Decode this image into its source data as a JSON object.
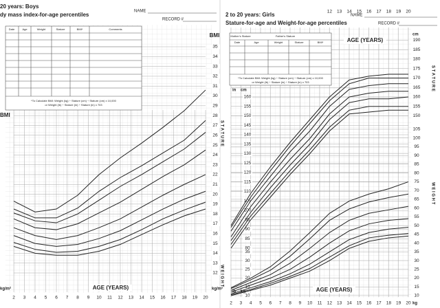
{
  "chart_data": [
    {
      "type": "line",
      "title": "20 years: Boys",
      "subtitle": "dy mass index-for-age percentiles",
      "name_label": "NAME",
      "record_label": "RECORD #",
      "table_headers": [
        "Date",
        "Age",
        "Weight",
        "Stature",
        "BMI*",
        "Comments"
      ],
      "note": [
        "*To Calculate BMI: Weight (kg) ÷ Stature (cm) ÷ Stature (cm) x 10,000",
        "or Weight (lb) ÷ Stature (in) ÷ Stature (in) x 703"
      ],
      "y_label": "BMI",
      "y_unit": "kg/m²",
      "x_label": "AGE (YEARS)",
      "side_labels": [
        "S T A T U R E",
        "W E I G H T"
      ],
      "x": [
        2,
        4,
        6,
        8,
        10,
        12,
        14,
        16,
        18,
        20
      ],
      "xlim": [
        2,
        20
      ],
      "xticks": [
        2,
        3,
        4,
        5,
        6,
        7,
        8,
        9,
        10,
        11,
        12,
        13,
        14,
        15,
        16,
        17,
        18,
        19,
        20
      ],
      "ylim": [
        12,
        35
      ],
      "yticks": [
        12,
        13,
        14,
        15,
        16,
        17,
        18,
        19,
        20,
        21,
        22,
        23,
        24,
        25,
        26,
        27,
        28,
        29,
        30,
        31,
        32,
        33,
        34,
        35
      ],
      "grid": true,
      "series": [
        {
          "color": "#222222",
          "values": [
            14.7,
            14.0,
            13.8,
            13.8,
            14.2,
            14.9,
            15.9,
            16.9,
            17.8,
            18.5
          ]
        },
        {
          "color": "#222222",
          "values": [
            15.1,
            14.4,
            14.1,
            14.2,
            14.7,
            15.4,
            16.4,
            17.5,
            18.4,
            19.2
          ]
        },
        {
          "color": "#222222",
          "values": [
            15.8,
            15.0,
            14.7,
            14.9,
            15.5,
            16.3,
            17.4,
            18.5,
            19.5,
            20.3
          ]
        },
        {
          "color": "#222222",
          "values": [
            16.6,
            15.8,
            15.4,
            15.8,
            16.6,
            17.5,
            18.7,
            19.9,
            21.0,
            22.0
          ]
        },
        {
          "color": "#222222",
          "values": [
            17.5,
            16.6,
            16.4,
            17.0,
            18.1,
            19.2,
            20.5,
            21.8,
            23.0,
            24.5
          ]
        },
        {
          "color": "#222222",
          "values": [
            18.1,
            17.3,
            17.1,
            18.0,
            19.4,
            20.8,
            22.0,
            23.3,
            24.6,
            26.3
          ]
        },
        {
          "color": "#222222",
          "values": [
            18.5,
            17.6,
            17.6,
            18.6,
            20.3,
            21.7,
            22.9,
            24.2,
            25.5,
            27.5
          ]
        },
        {
          "color": "#222222",
          "values": [
            19.3,
            18.2,
            18.5,
            19.9,
            22.0,
            23.7,
            25.2,
            26.8,
            28.5,
            30.6
          ]
        }
      ]
    },
    {
      "type": "line",
      "title": "2 to 20 years: Girls",
      "subtitle": "Stature-for-age and Weight-for-age percentiles",
      "name_label": "NAME",
      "record_label": "RECORD #",
      "parent_headers": [
        "Mother's Stature",
        "Father's Stature"
      ],
      "table_headers": [
        "Date",
        "Age",
        "Weight",
        "Stature",
        "BMI*"
      ],
      "note": [
        "*To Calculate BMI: Weight (kg) ÷ Stature (cm) ÷ Stature (cm) x 10,000",
        "or Weight (lb) ÷ Stature (in) ÷ Stature (in) x 703"
      ],
      "x_label": "AGE (YEARS)",
      "y_unit": "cm",
      "y_unit_alt": "in",
      "y2_unit": "kg",
      "y2_unit_alt": "lb",
      "side_labels": [
        "S T A T U R E",
        "W E I G H T"
      ],
      "x": [
        2,
        4,
        6,
        8,
        10,
        12,
        14,
        16,
        18,
        20
      ],
      "xlim": [
        2,
        20
      ],
      "xticks": [
        2,
        3,
        4,
        5,
        6,
        7,
        8,
        9,
        10,
        11,
        12,
        13,
        14,
        15,
        16,
        17,
        18,
        19,
        20
      ],
      "xticks_top": [
        12,
        13,
        14,
        15,
        16,
        17,
        18,
        19,
        20
      ],
      "ylim": [
        60,
        200
      ],
      "yticks": [
        80,
        85,
        90,
        95,
        100,
        105,
        110,
        115,
        120,
        125,
        130,
        135,
        140,
        145,
        150,
        155,
        160
      ],
      "yticks_right": [
        150,
        155,
        160,
        165,
        170,
        175,
        180,
        185,
        190
      ],
      "y2lim": [
        10,
        105
      ],
      "y2ticks": [
        10,
        15,
        20,
        25,
        30,
        35,
        40,
        45,
        50,
        55,
        60,
        65,
        70,
        75,
        80,
        85,
        90,
        95,
        100,
        105
      ],
      "y2ticks_left": [
        10,
        15,
        20,
        25,
        30,
        35
      ],
      "grid": true,
      "series": [
        {
          "color": "#222222",
          "values": [
            80,
            95,
            107,
            119,
            130,
            142,
            151,
            152,
            153,
            153
          ]
        },
        {
          "color": "#222222",
          "values": [
            82,
            97,
            109,
            121,
            132,
            144,
            153,
            155,
            155,
            155
          ]
        },
        {
          "color": "#222222",
          "values": [
            84,
            99,
            112,
            124,
            135,
            148,
            157,
            159,
            159,
            160
          ]
        },
        {
          "color": "#222222",
          "values": [
            86,
            102,
            115,
            127,
            138,
            151,
            160,
            162,
            163,
            163
          ]
        },
        {
          "color": "#222222",
          "values": [
            89,
            105,
            118,
            131,
            142,
            155,
            164,
            166,
            167,
            167
          ]
        },
        {
          "color": "#222222",
          "values": [
            91,
            107,
            121,
            134,
            146,
            158,
            167,
            170,
            170,
            170
          ]
        },
        {
          "color": "#222222",
          "values": [
            92,
            109,
            123,
            136,
            148,
            160,
            169,
            171,
            172,
            172
          ]
        },
        {
          "color": "#222222",
          "axis": "y2",
          "values": [
            10,
            13,
            16,
            20,
            24,
            30,
            37,
            41,
            43,
            44
          ]
        },
        {
          "color": "#222222",
          "axis": "y2",
          "values": [
            10.5,
            13.5,
            17,
            21,
            25.5,
            32,
            38.5,
            43,
            44.5,
            45.5
          ]
        },
        {
          "color": "#222222",
          "axis": "y2",
          "values": [
            11,
            14.5,
            18,
            22.5,
            28,
            35,
            42,
            46,
            48,
            49
          ]
        },
        {
          "color": "#222222",
          "axis": "y2",
          "values": [
            12,
            16,
            20,
            25,
            32,
            40,
            47,
            51,
            53,
            54
          ]
        },
        {
          "color": "#222222",
          "axis": "y2",
          "values": [
            13,
            17.5,
            22,
            28.5,
            37,
            46,
            53,
            57,
            59,
            61
          ]
        },
        {
          "color": "#222222",
          "axis": "y2",
          "values": [
            14,
            19,
            24.5,
            32.5,
            42.5,
            53,
            59.5,
            63.5,
            66,
            68
          ]
        },
        {
          "color": "#222222",
          "axis": "y2",
          "values": [
            14.5,
            20,
            26.5,
            35.5,
            46,
            57,
            64,
            68,
            71,
            75
          ]
        }
      ]
    }
  ]
}
